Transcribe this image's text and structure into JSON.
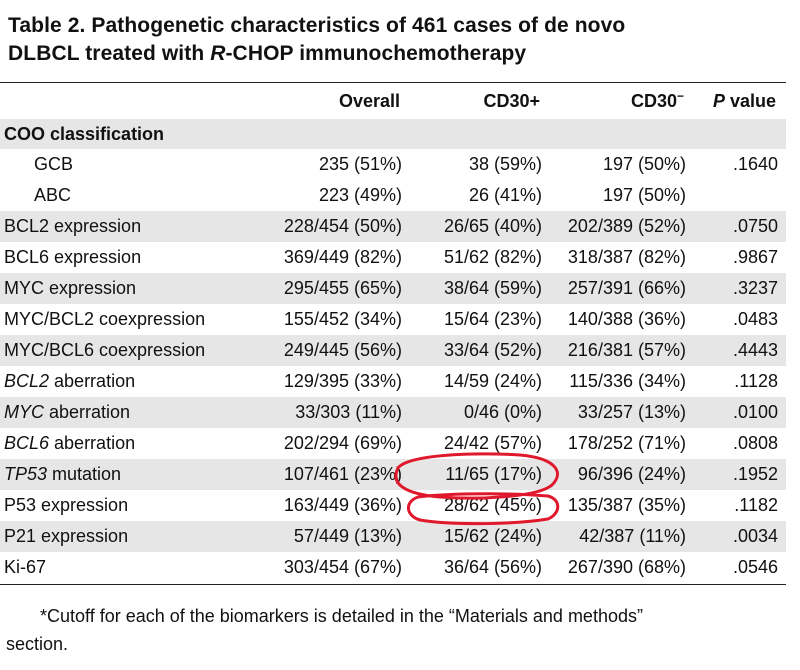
{
  "title": {
    "line1": "Table 2. Pathogenetic characteristics of 461 cases of de novo",
    "line2_pre": "DLBCL treated with ",
    "line2_italic": "R",
    "line2_post": "-CHOP immunochemotherapy"
  },
  "headers": {
    "overall": "Overall",
    "cd30pos": "CD30+",
    "cd30neg": "CD30",
    "cd30neg_sup": "−",
    "p_italic": "P",
    "p_rest": " value"
  },
  "section": {
    "label": "COO classification"
  },
  "rows": [
    {
      "label": "GCB",
      "overall": "235 (51%)",
      "cd30pos": "38 (59%)",
      "cd30neg": "197 (50%)",
      "p": ".1640"
    },
    {
      "label": "ABC",
      "overall": "223 (49%)",
      "cd30pos": "26 (41%)",
      "cd30neg": "197 (50%)",
      "p": ""
    },
    {
      "label": "BCL2 expression",
      "overall": "228/454 (50%)",
      "cd30pos": "26/65 (40%)",
      "cd30neg": "202/389 (52%)",
      "p": ".0750"
    },
    {
      "label": "BCL6 expression",
      "overall": "369/449 (82%)",
      "cd30pos": "51/62 (82%)",
      "cd30neg": "318/387 (82%)",
      "p": ".9867"
    },
    {
      "label": "MYC expression",
      "overall": "295/455 (65%)",
      "cd30pos": "38/64 (59%)",
      "cd30neg": "257/391 (66%)",
      "p": ".3237"
    },
    {
      "label": "MYC/BCL2 coexpression",
      "overall": "155/452 (34%)",
      "cd30pos": "15/64 (23%)",
      "cd30neg": "140/388 (36%)",
      "p": ".0483"
    },
    {
      "label": "MYC/BCL6 coexpression",
      "overall": "249/445 (56%)",
      "cd30pos": "33/64 (52%)",
      "cd30neg": "216/381 (57%)",
      "p": ".4443"
    },
    {
      "label_italic": "BCL2",
      "label_rest": " aberration",
      "overall": "129/395 (33%)",
      "cd30pos": "14/59 (24%)",
      "cd30neg": "115/336 (34%)",
      "p": ".1128"
    },
    {
      "label_italic": "MYC",
      "label_rest": " aberration",
      "overall": "33/303 (11%)",
      "cd30pos": "0/46 (0%)",
      "cd30neg": "33/257 (13%)",
      "p": ".0100"
    },
    {
      "label_italic": "BCL6",
      "label_rest": " aberration",
      "overall": "202/294 (69%)",
      "cd30pos": "24/42 (57%)",
      "cd30neg": "178/252 (71%)",
      "p": ".0808"
    },
    {
      "label_italic": "TP53",
      "label_rest": " mutation",
      "overall": "107/461 (23%)",
      "cd30pos": "11/65 (17%)",
      "cd30neg": "96/396 (24%)",
      "p": ".1952"
    },
    {
      "label": "P53 expression",
      "overall": "163/449 (36%)",
      "cd30pos": "28/62 (45%)",
      "cd30neg": "135/387 (35%)",
      "p": ".1182"
    },
    {
      "label": "P21 expression",
      "overall": "57/449 (13%)",
      "cd30pos": "15/62 (24%)",
      "cd30neg": "42/387 (11%)",
      "p": ".0034"
    },
    {
      "label": "Ki-67",
      "overall": "303/454 (67%)",
      "cd30pos": "36/64 (56%)",
      "cd30neg": "267/390 (68%)",
      "p": ".0546"
    }
  ],
  "footnote": {
    "line1": "*Cutoff for each of the biomarkers is detailed in the “Materials and methods”",
    "line2": "section."
  },
  "colors": {
    "annotation": "#e0182c",
    "shade": "#e6e6e6"
  }
}
